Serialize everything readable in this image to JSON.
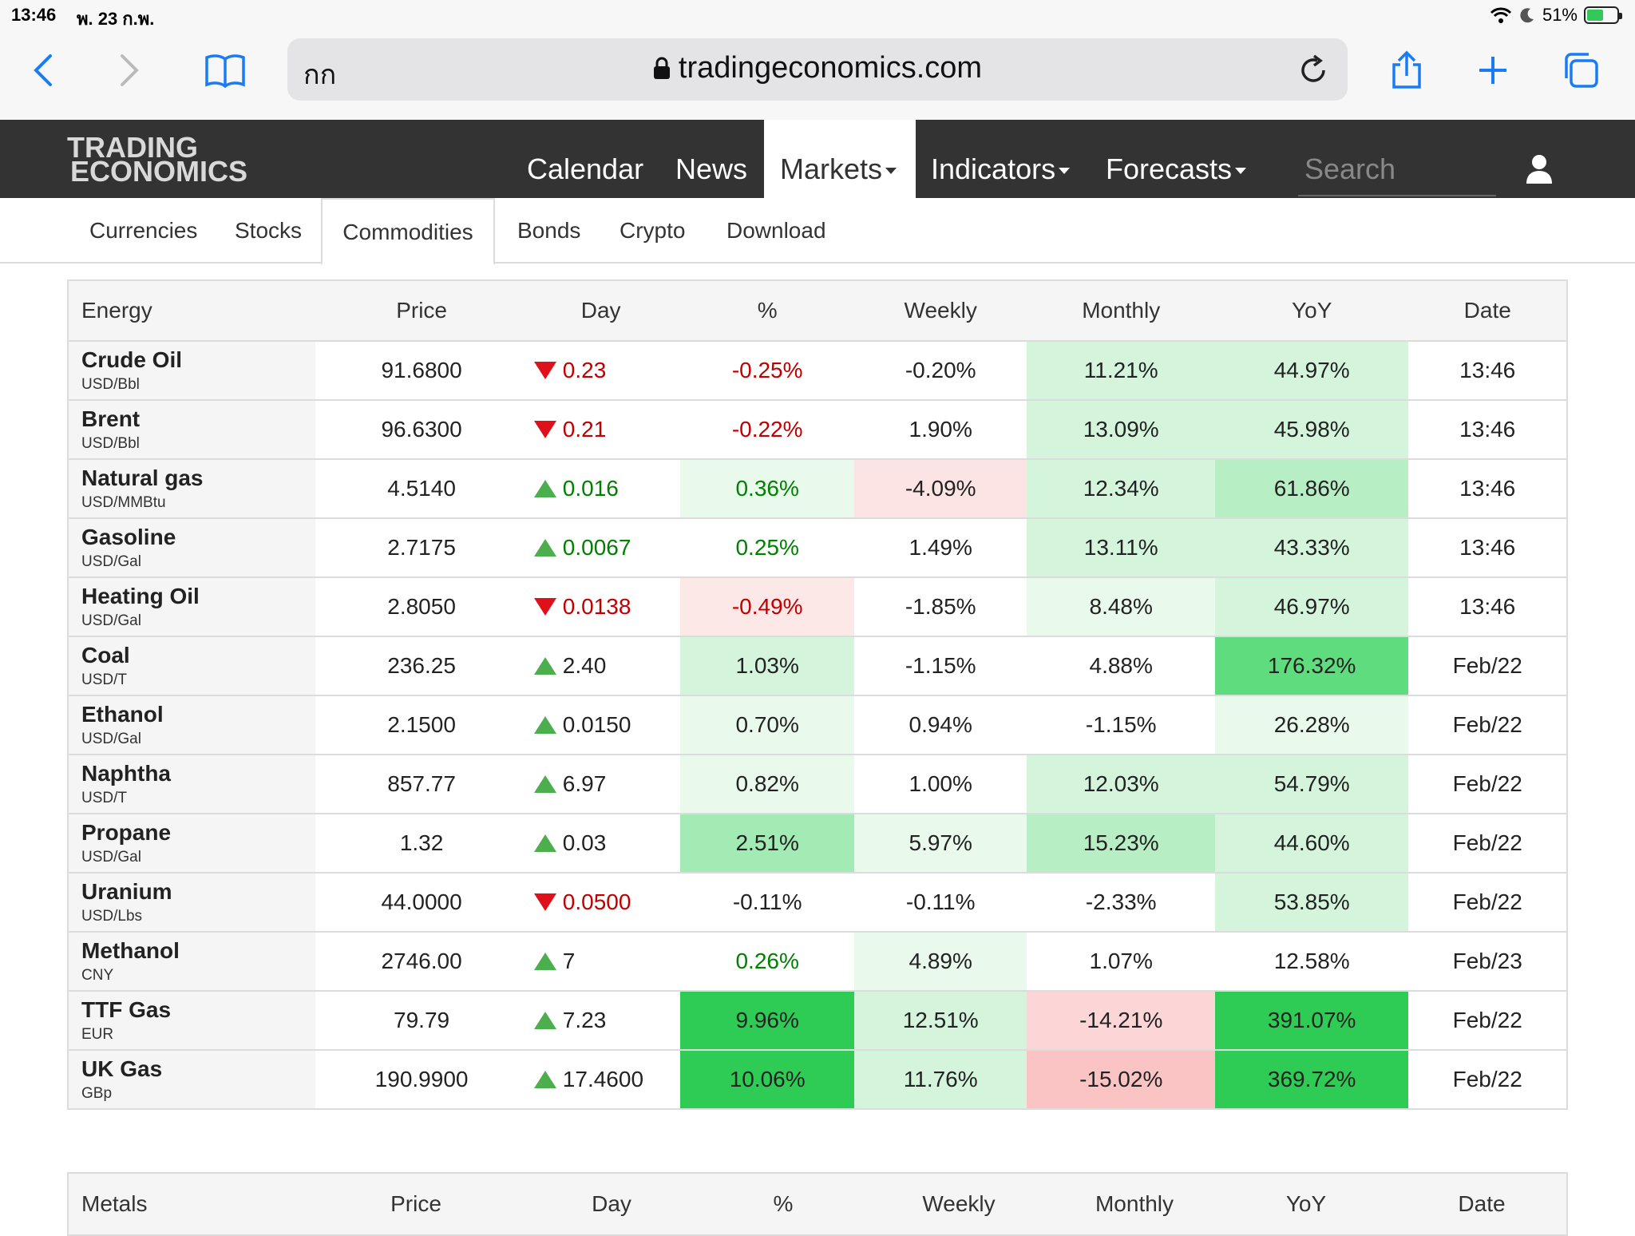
{
  "status_bar": {
    "time": "13:46",
    "date": "พ. 23 ก.พ.",
    "battery": "51%"
  },
  "browser": {
    "text_size_label": "กก",
    "url": "tradingeconomics.com"
  },
  "site": {
    "logo_line1": "TRADING",
    "logo_line2": "ECONOMICS",
    "nav": [
      "Calendar",
      "News",
      "Markets",
      "Indicators",
      "Forecasts"
    ],
    "search_placeholder": "Search",
    "subnav": [
      "Currencies",
      "Stocks",
      "Commodities",
      "Bonds",
      "Crypto",
      "Download"
    ]
  },
  "energy_table": {
    "headers": [
      "Energy",
      "Price",
      "Day",
      "%",
      "Weekly",
      "Monthly",
      "YoY",
      "Date"
    ],
    "rows": [
      {
        "name": "Crude Oil",
        "unit": "USD/Bbl",
        "price": "91.6800",
        "dir": "down",
        "day": "0.23",
        "pct": "-0.25%",
        "weekly": "-0.20%",
        "monthly": "11.21%",
        "yoy": "44.97%",
        "date": "13:46"
      },
      {
        "name": "Brent",
        "unit": "USD/Bbl",
        "price": "96.6300",
        "dir": "down",
        "day": "0.21",
        "pct": "-0.22%",
        "weekly": "1.90%",
        "monthly": "13.09%",
        "yoy": "45.98%",
        "date": "13:46"
      },
      {
        "name": "Natural gas",
        "unit": "USD/MMBtu",
        "price": "4.5140",
        "dir": "up",
        "day": "0.016",
        "pct": "0.36%",
        "weekly": "-4.09%",
        "monthly": "12.34%",
        "yoy": "61.86%",
        "date": "13:46"
      },
      {
        "name": "Gasoline",
        "unit": "USD/Gal",
        "price": "2.7175",
        "dir": "up",
        "day": "0.0067",
        "pct": "0.25%",
        "weekly": "1.49%",
        "monthly": "13.11%",
        "yoy": "43.33%",
        "date": "13:46"
      },
      {
        "name": "Heating Oil",
        "unit": "USD/Gal",
        "price": "2.8050",
        "dir": "down",
        "day": "0.0138",
        "pct": "-0.49%",
        "weekly": "-1.85%",
        "monthly": "8.48%",
        "yoy": "46.97%",
        "date": "13:46"
      },
      {
        "name": "Coal",
        "unit": "USD/T",
        "price": "236.25",
        "dir": "up",
        "day": "2.40",
        "pct": "1.03%",
        "weekly": "-1.15%",
        "monthly": "4.88%",
        "yoy": "176.32%",
        "date": "Feb/22"
      },
      {
        "name": "Ethanol",
        "unit": "USD/Gal",
        "price": "2.1500",
        "dir": "up",
        "day": "0.0150",
        "pct": "0.70%",
        "weekly": "0.94%",
        "monthly": "-1.15%",
        "yoy": "26.28%",
        "date": "Feb/22"
      },
      {
        "name": "Naphtha",
        "unit": "USD/T",
        "price": "857.77",
        "dir": "up",
        "day": "6.97",
        "pct": "0.82%",
        "weekly": "1.00%",
        "monthly": "12.03%",
        "yoy": "54.79%",
        "date": "Feb/22"
      },
      {
        "name": "Propane",
        "unit": "USD/Gal",
        "price": "1.32",
        "dir": "up",
        "day": "0.03",
        "pct": "2.51%",
        "weekly": "5.97%",
        "monthly": "15.23%",
        "yoy": "44.60%",
        "date": "Feb/22"
      },
      {
        "name": "Uranium",
        "unit": "USD/Lbs",
        "price": "44.0000",
        "dir": "down",
        "day": "0.0500",
        "pct": "-0.11%",
        "weekly": "-0.11%",
        "monthly": "-2.33%",
        "yoy": "53.85%",
        "date": "Feb/22"
      },
      {
        "name": "Methanol",
        "unit": "CNY",
        "price": "2746.00",
        "dir": "up",
        "day": "7",
        "pct": "0.26%",
        "weekly": "4.89%",
        "monthly": "1.07%",
        "yoy": "12.58%",
        "date": "Feb/23"
      },
      {
        "name": "TTF Gas",
        "unit": "EUR",
        "price": "79.79",
        "dir": "up",
        "day": "7.23",
        "pct": "9.96%",
        "weekly": "12.51%",
        "monthly": "-14.21%",
        "yoy": "391.07%",
        "date": "Feb/22"
      },
      {
        "name": "UK Gas",
        "unit": "GBp",
        "price": "190.9900",
        "dir": "up",
        "day": "17.4600",
        "pct": "10.06%",
        "weekly": "11.76%",
        "monthly": "-15.02%",
        "yoy": "369.72%",
        "date": "Feb/22"
      }
    ]
  },
  "metals_table": {
    "headers": [
      "Metals",
      "Price",
      "Day",
      "%",
      "Weekly",
      "Monthly",
      "YoY",
      "Date"
    ]
  },
  "colors": {
    "nav_bg": "#333333",
    "up_arrow": "#4cae4c",
    "down_arrow": "#e0101a",
    "pos_text": "#008000",
    "neg_text": "#c00000",
    "accent": "#1a7cf5"
  }
}
